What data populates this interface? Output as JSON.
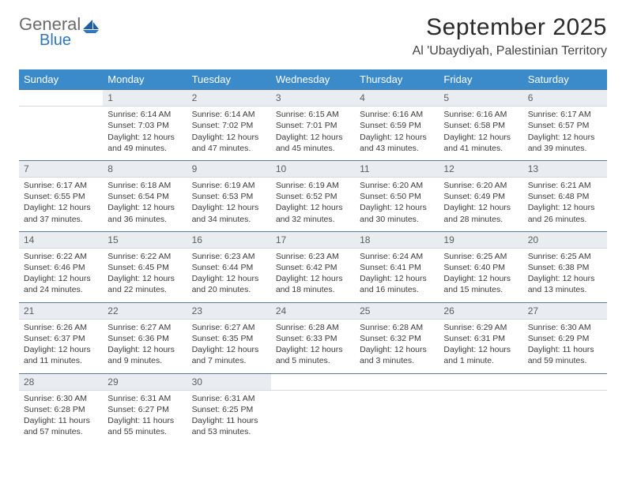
{
  "brand": {
    "word1": "General",
    "word2": "Blue"
  },
  "header": {
    "month_title": "September 2025",
    "location": "Al 'Ubaydiyah, Palestinian Territory"
  },
  "colors": {
    "header_bg": "#3b8bca",
    "header_text": "#ffffff",
    "daynum_bg": "#e9edf1",
    "daynum_border_top": "#5b7a99",
    "body_text": "#3a3a3a",
    "logo_gray": "#6b6b6b",
    "logo_blue": "#2f76bb"
  },
  "dow": [
    "Sunday",
    "Monday",
    "Tuesday",
    "Wednesday",
    "Thursday",
    "Friday",
    "Saturday"
  ],
  "weeks": [
    {
      "nums": [
        "",
        "1",
        "2",
        "3",
        "4",
        "5",
        "6"
      ],
      "cells": [
        null,
        {
          "sunrise": "Sunrise: 6:14 AM",
          "sunset": "Sunset: 7:03 PM",
          "day1": "Daylight: 12 hours",
          "day2": "and 49 minutes."
        },
        {
          "sunrise": "Sunrise: 6:14 AM",
          "sunset": "Sunset: 7:02 PM",
          "day1": "Daylight: 12 hours",
          "day2": "and 47 minutes."
        },
        {
          "sunrise": "Sunrise: 6:15 AM",
          "sunset": "Sunset: 7:01 PM",
          "day1": "Daylight: 12 hours",
          "day2": "and 45 minutes."
        },
        {
          "sunrise": "Sunrise: 6:16 AM",
          "sunset": "Sunset: 6:59 PM",
          "day1": "Daylight: 12 hours",
          "day2": "and 43 minutes."
        },
        {
          "sunrise": "Sunrise: 6:16 AM",
          "sunset": "Sunset: 6:58 PM",
          "day1": "Daylight: 12 hours",
          "day2": "and 41 minutes."
        },
        {
          "sunrise": "Sunrise: 6:17 AM",
          "sunset": "Sunset: 6:57 PM",
          "day1": "Daylight: 12 hours",
          "day2": "and 39 minutes."
        }
      ]
    },
    {
      "nums": [
        "7",
        "8",
        "9",
        "10",
        "11",
        "12",
        "13"
      ],
      "cells": [
        {
          "sunrise": "Sunrise: 6:17 AM",
          "sunset": "Sunset: 6:55 PM",
          "day1": "Daylight: 12 hours",
          "day2": "and 37 minutes."
        },
        {
          "sunrise": "Sunrise: 6:18 AM",
          "sunset": "Sunset: 6:54 PM",
          "day1": "Daylight: 12 hours",
          "day2": "and 36 minutes."
        },
        {
          "sunrise": "Sunrise: 6:19 AM",
          "sunset": "Sunset: 6:53 PM",
          "day1": "Daylight: 12 hours",
          "day2": "and 34 minutes."
        },
        {
          "sunrise": "Sunrise: 6:19 AM",
          "sunset": "Sunset: 6:52 PM",
          "day1": "Daylight: 12 hours",
          "day2": "and 32 minutes."
        },
        {
          "sunrise": "Sunrise: 6:20 AM",
          "sunset": "Sunset: 6:50 PM",
          "day1": "Daylight: 12 hours",
          "day2": "and 30 minutes."
        },
        {
          "sunrise": "Sunrise: 6:20 AM",
          "sunset": "Sunset: 6:49 PM",
          "day1": "Daylight: 12 hours",
          "day2": "and 28 minutes."
        },
        {
          "sunrise": "Sunrise: 6:21 AM",
          "sunset": "Sunset: 6:48 PM",
          "day1": "Daylight: 12 hours",
          "day2": "and 26 minutes."
        }
      ]
    },
    {
      "nums": [
        "14",
        "15",
        "16",
        "17",
        "18",
        "19",
        "20"
      ],
      "cells": [
        {
          "sunrise": "Sunrise: 6:22 AM",
          "sunset": "Sunset: 6:46 PM",
          "day1": "Daylight: 12 hours",
          "day2": "and 24 minutes."
        },
        {
          "sunrise": "Sunrise: 6:22 AM",
          "sunset": "Sunset: 6:45 PM",
          "day1": "Daylight: 12 hours",
          "day2": "and 22 minutes."
        },
        {
          "sunrise": "Sunrise: 6:23 AM",
          "sunset": "Sunset: 6:44 PM",
          "day1": "Daylight: 12 hours",
          "day2": "and 20 minutes."
        },
        {
          "sunrise": "Sunrise: 6:23 AM",
          "sunset": "Sunset: 6:42 PM",
          "day1": "Daylight: 12 hours",
          "day2": "and 18 minutes."
        },
        {
          "sunrise": "Sunrise: 6:24 AM",
          "sunset": "Sunset: 6:41 PM",
          "day1": "Daylight: 12 hours",
          "day2": "and 16 minutes."
        },
        {
          "sunrise": "Sunrise: 6:25 AM",
          "sunset": "Sunset: 6:40 PM",
          "day1": "Daylight: 12 hours",
          "day2": "and 15 minutes."
        },
        {
          "sunrise": "Sunrise: 6:25 AM",
          "sunset": "Sunset: 6:38 PM",
          "day1": "Daylight: 12 hours",
          "day2": "and 13 minutes."
        }
      ]
    },
    {
      "nums": [
        "21",
        "22",
        "23",
        "24",
        "25",
        "26",
        "27"
      ],
      "cells": [
        {
          "sunrise": "Sunrise: 6:26 AM",
          "sunset": "Sunset: 6:37 PM",
          "day1": "Daylight: 12 hours",
          "day2": "and 11 minutes."
        },
        {
          "sunrise": "Sunrise: 6:27 AM",
          "sunset": "Sunset: 6:36 PM",
          "day1": "Daylight: 12 hours",
          "day2": "and 9 minutes."
        },
        {
          "sunrise": "Sunrise: 6:27 AM",
          "sunset": "Sunset: 6:35 PM",
          "day1": "Daylight: 12 hours",
          "day2": "and 7 minutes."
        },
        {
          "sunrise": "Sunrise: 6:28 AM",
          "sunset": "Sunset: 6:33 PM",
          "day1": "Daylight: 12 hours",
          "day2": "and 5 minutes."
        },
        {
          "sunrise": "Sunrise: 6:28 AM",
          "sunset": "Sunset: 6:32 PM",
          "day1": "Daylight: 12 hours",
          "day2": "and 3 minutes."
        },
        {
          "sunrise": "Sunrise: 6:29 AM",
          "sunset": "Sunset: 6:31 PM",
          "day1": "Daylight: 12 hours",
          "day2": "and 1 minute."
        },
        {
          "sunrise": "Sunrise: 6:30 AM",
          "sunset": "Sunset: 6:29 PM",
          "day1": "Daylight: 11 hours",
          "day2": "and 59 minutes."
        }
      ]
    },
    {
      "nums": [
        "28",
        "29",
        "30",
        "",
        "",
        "",
        ""
      ],
      "cells": [
        {
          "sunrise": "Sunrise: 6:30 AM",
          "sunset": "Sunset: 6:28 PM",
          "day1": "Daylight: 11 hours",
          "day2": "and 57 minutes."
        },
        {
          "sunrise": "Sunrise: 6:31 AM",
          "sunset": "Sunset: 6:27 PM",
          "day1": "Daylight: 11 hours",
          "day2": "and 55 minutes."
        },
        {
          "sunrise": "Sunrise: 6:31 AM",
          "sunset": "Sunset: 6:25 PM",
          "day1": "Daylight: 11 hours",
          "day2": "and 53 minutes."
        },
        null,
        null,
        null,
        null
      ]
    }
  ]
}
